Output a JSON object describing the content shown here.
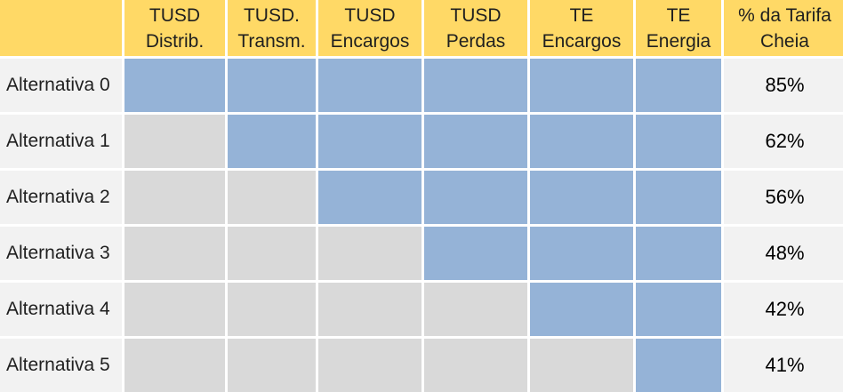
{
  "table": {
    "headers": [
      "TUSD\nDistrib.",
      "TUSD.\nTransm.",
      "TUSD\nEncargos",
      "TUSD\nPerdas",
      "TE\nEncargos",
      "TE\nEnergia",
      "% da Tarifa\nCheia"
    ],
    "rows": [
      {
        "label": "Alternativa 0",
        "included": [
          true,
          true,
          true,
          true,
          true,
          true
        ],
        "percent": "85%"
      },
      {
        "label": "Alternativa 1",
        "included": [
          false,
          true,
          true,
          true,
          true,
          true
        ],
        "percent": "62%"
      },
      {
        "label": "Alternativa 2",
        "included": [
          false,
          false,
          true,
          true,
          true,
          true
        ],
        "percent": "56%"
      },
      {
        "label": "Alternativa 3",
        "included": [
          false,
          false,
          false,
          true,
          true,
          true
        ],
        "percent": "48%"
      },
      {
        "label": "Alternativa 4",
        "included": [
          false,
          false,
          false,
          false,
          true,
          true
        ],
        "percent": "42%"
      },
      {
        "label": "Alternativa 5",
        "included": [
          false,
          false,
          false,
          false,
          false,
          true
        ],
        "percent": "41%"
      }
    ]
  },
  "colors": {
    "header_bg": "#ffd966",
    "included": "#95b3d7",
    "excluded": "#d9d9d9",
    "label_bg": "#f2f2f2"
  }
}
